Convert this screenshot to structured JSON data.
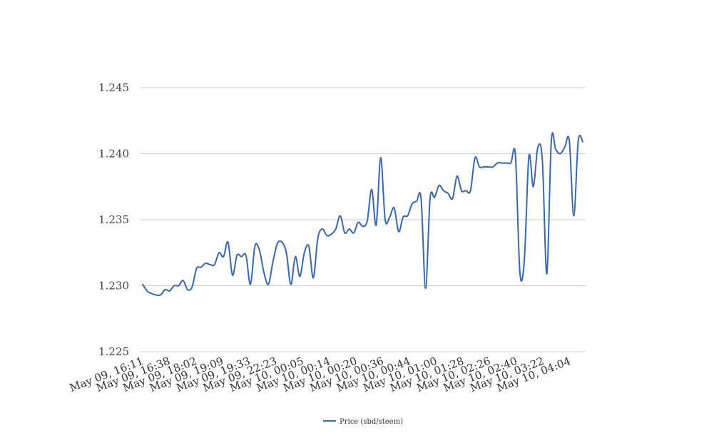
{
  "chart_data": {
    "type": "line",
    "title": "",
    "xlabel": "",
    "ylabel": "",
    "ylim": [
      1.225,
      1.245
    ],
    "y_ticks": [
      "1.225",
      "1.230",
      "1.235",
      "1.240",
      "1.245"
    ],
    "grid": true,
    "legend_position": "bottom-center",
    "x_tick_labels": [
      "May 09, 16:11",
      "May 09, 16:38",
      "May 09, 18:02",
      "May 09, 19:09",
      "May 09, 19:33",
      "May 09, 22:23",
      "May 10, 00:05",
      "May 10, 00:14",
      "May 10, 00:20",
      "May 10, 00:36",
      "May 10, 00:44",
      "May 10, 01:00",
      "May 10, 01:28",
      "May 10, 02:26",
      "May 10, 02:40",
      "May 10, 03:22",
      "May 10, 04:04"
    ],
    "series": [
      {
        "name": "Price (sbd/steem)",
        "color": "#3a66b0",
        "values": [
          1.2301,
          1.2296,
          1.2294,
          1.2293,
          1.2293,
          1.2297,
          1.2296,
          1.23,
          1.23,
          1.2304,
          1.2297,
          1.2299,
          1.2313,
          1.2314,
          1.2317,
          1.2316,
          1.2316,
          1.2325,
          1.2322,
          1.2333,
          1.2308,
          1.2323,
          1.2322,
          1.2323,
          1.2301,
          1.233,
          1.2327,
          1.231,
          1.2301,
          1.2318,
          1.2332,
          1.2333,
          1.2325,
          1.2301,
          1.2322,
          1.2307,
          1.2325,
          1.233,
          1.2306,
          1.2336,
          1.2343,
          1.2338,
          1.2339,
          1.2343,
          1.2353,
          1.234,
          1.2343,
          1.234,
          1.2348,
          1.2345,
          1.2349,
          1.2373,
          1.2346,
          1.2397,
          1.235,
          1.2352,
          1.2359,
          1.2341,
          1.2352,
          1.2353,
          1.2362,
          1.2364,
          1.2366,
          1.2298,
          1.2366,
          1.2367,
          1.2376,
          1.2372,
          1.237,
          1.2366,
          1.2383,
          1.2372,
          1.2372,
          1.2372,
          1.2397,
          1.239,
          1.239,
          1.239,
          1.239,
          1.2393,
          1.2393,
          1.2393,
          1.2393,
          1.2399,
          1.231,
          1.232,
          1.2398,
          1.2375,
          1.2405,
          1.2395,
          1.2309,
          1.241,
          1.2403,
          1.24,
          1.2405,
          1.241,
          1.2353,
          1.241,
          1.2409
        ]
      }
    ]
  }
}
